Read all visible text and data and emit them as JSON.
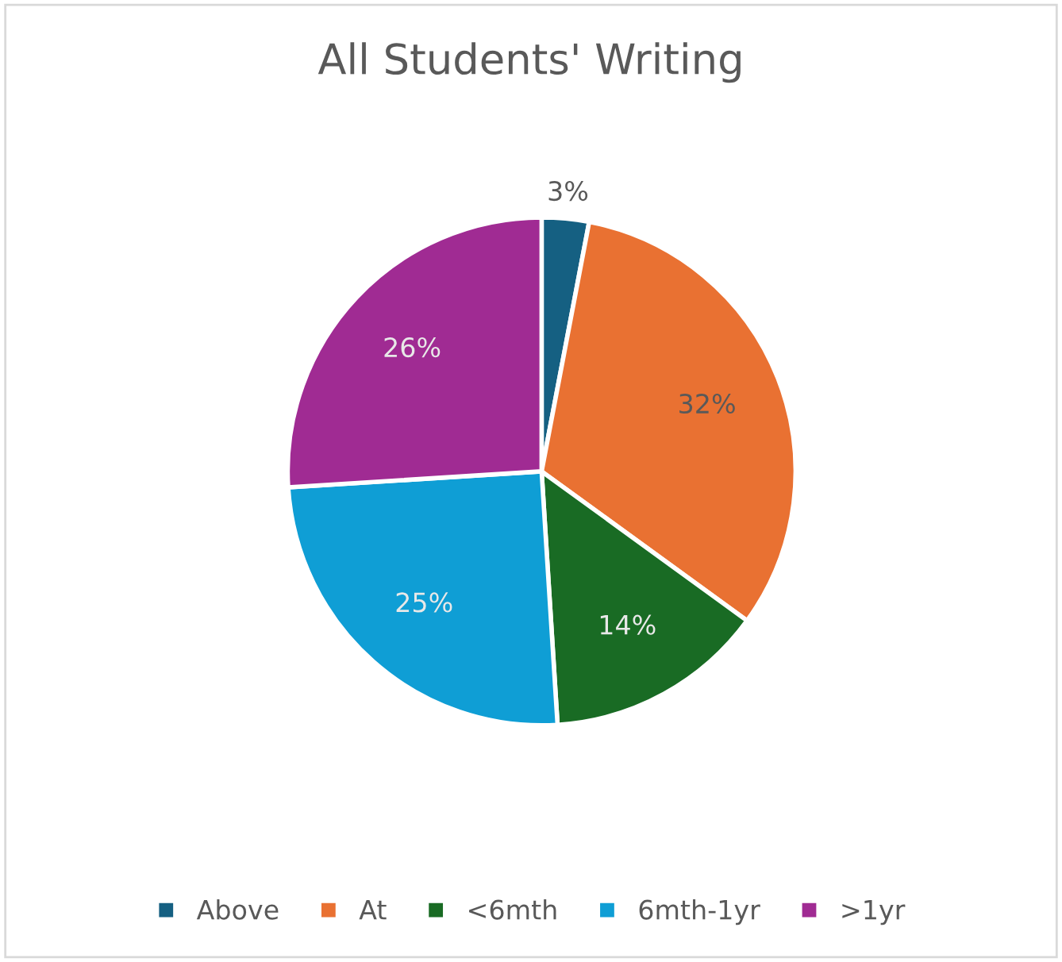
{
  "chart_data": {
    "type": "pie",
    "title": "All Students' Writing",
    "categories": [
      "Above",
      "At",
      "<6mth",
      "6mth-1yr",
      ">1yr"
    ],
    "values": [
      3,
      32,
      14,
      25,
      26
    ],
    "value_labels": [
      "3%",
      "32%",
      "14%",
      "25%",
      "26%"
    ],
    "colors": [
      "#156082",
      "#e97132",
      "#196b24",
      "#0f9ed5",
      "#a02b93"
    ],
    "legend": "bottom"
  }
}
